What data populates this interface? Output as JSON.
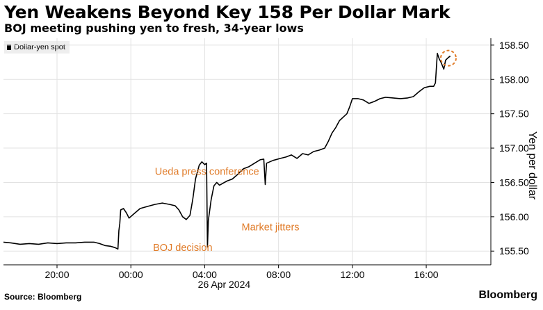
{
  "chart_data": {
    "type": "line",
    "title": "Yen Weakens Beyond Key 158 Per Dollar Mark",
    "subtitle": "BOJ meeting pushing yen to fresh, 34-year lows",
    "ylabel": "Yen per dollar",
    "xlabel": "",
    "date_label": "26 Apr 2024",
    "ylim": [
      155.3,
      158.6
    ],
    "xlim": [
      -6.9,
      19.5
    ],
    "y_ticks": [
      155.5,
      156.0,
      156.5,
      157.0,
      157.5,
      158.0,
      158.5
    ],
    "y_tick_labels": [
      "155.50",
      "156.00",
      "156.50",
      "157.00",
      "157.50",
      "158.00",
      "158.50"
    ],
    "x_ticks": [
      -4,
      0,
      4,
      8,
      12,
      16
    ],
    "x_tick_labels": [
      "20:00",
      "00:00",
      "04:00",
      "08:00",
      "12:00",
      "16:00"
    ],
    "legend": [
      "Dollar-yen spot"
    ],
    "series": [
      {
        "name": "Dollar-yen spot",
        "color": "#000000",
        "points": [
          [
            -6.9,
            155.63
          ],
          [
            -6.5,
            155.62
          ],
          [
            -6.0,
            155.6
          ],
          [
            -5.5,
            155.61
          ],
          [
            -5.0,
            155.6
          ],
          [
            -4.5,
            155.62
          ],
          [
            -4.0,
            155.61
          ],
          [
            -3.5,
            155.62
          ],
          [
            -3.0,
            155.62
          ],
          [
            -2.5,
            155.63
          ],
          [
            -2.0,
            155.63
          ],
          [
            -1.7,
            155.61
          ],
          [
            -1.4,
            155.58
          ],
          [
            -1.1,
            155.57
          ],
          [
            -0.85,
            155.55
          ],
          [
            -0.7,
            155.53
          ],
          [
            -0.65,
            155.8
          ],
          [
            -0.6,
            155.9
          ],
          [
            -0.55,
            156.1
          ],
          [
            -0.4,
            156.12
          ],
          [
            -0.25,
            156.06
          ],
          [
            -0.1,
            155.98
          ],
          [
            0.2,
            156.05
          ],
          [
            0.5,
            156.12
          ],
          [
            0.9,
            156.15
          ],
          [
            1.3,
            156.18
          ],
          [
            1.7,
            156.2
          ],
          [
            2.1,
            156.18
          ],
          [
            2.4,
            156.16
          ],
          [
            2.6,
            156.1
          ],
          [
            2.8,
            156.0
          ],
          [
            3.0,
            155.96
          ],
          [
            3.2,
            156.02
          ],
          [
            3.35,
            156.25
          ],
          [
            3.5,
            156.55
          ],
          [
            3.7,
            156.75
          ],
          [
            3.85,
            156.8
          ],
          [
            4.0,
            156.76
          ],
          [
            4.1,
            156.78
          ],
          [
            4.15,
            155.56
          ],
          [
            4.2,
            155.95
          ],
          [
            4.35,
            156.25
          ],
          [
            4.5,
            156.45
          ],
          [
            4.65,
            156.5
          ],
          [
            4.8,
            156.46
          ],
          [
            5.2,
            156.52
          ],
          [
            5.5,
            156.55
          ],
          [
            5.8,
            156.62
          ],
          [
            6.1,
            156.7
          ],
          [
            6.4,
            156.73
          ],
          [
            6.7,
            156.78
          ],
          [
            7.0,
            156.83
          ],
          [
            7.2,
            156.84
          ],
          [
            7.28,
            156.47
          ],
          [
            7.35,
            156.78
          ],
          [
            7.7,
            156.82
          ],
          [
            8.1,
            156.85
          ],
          [
            8.4,
            156.87
          ],
          [
            8.7,
            156.9
          ],
          [
            9.0,
            156.85
          ],
          [
            9.3,
            156.92
          ],
          [
            9.6,
            156.9
          ],
          [
            9.9,
            156.95
          ],
          [
            10.2,
            156.97
          ],
          [
            10.5,
            157.0
          ],
          [
            10.7,
            157.1
          ],
          [
            10.9,
            157.22
          ],
          [
            11.1,
            157.3
          ],
          [
            11.3,
            157.4
          ],
          [
            11.5,
            157.45
          ],
          [
            11.7,
            157.5
          ],
          [
            11.85,
            157.6
          ],
          [
            12.0,
            157.72
          ],
          [
            12.3,
            157.72
          ],
          [
            12.6,
            157.7
          ],
          [
            12.9,
            157.65
          ],
          [
            13.2,
            157.68
          ],
          [
            13.5,
            157.72
          ],
          [
            13.8,
            157.74
          ],
          [
            14.2,
            157.73
          ],
          [
            14.6,
            157.72
          ],
          [
            15.0,
            157.73
          ],
          [
            15.3,
            157.75
          ],
          [
            15.6,
            157.82
          ],
          [
            15.9,
            157.88
          ],
          [
            16.2,
            157.9
          ],
          [
            16.4,
            157.9
          ],
          [
            16.5,
            157.95
          ],
          [
            16.6,
            158.38
          ],
          [
            16.7,
            158.3
          ],
          [
            16.8,
            158.25
          ],
          [
            16.95,
            158.15
          ],
          [
            17.05,
            158.28
          ],
          [
            17.2,
            158.32
          ],
          [
            17.3,
            158.34
          ]
        ]
      }
    ],
    "annotations": [
      {
        "text": "Ueda press conference",
        "x": 1.3,
        "y": 156.61
      },
      {
        "text": "Market jitters",
        "x": 6.0,
        "y": 155.8
      },
      {
        "text": "BOJ decision",
        "x": 1.2,
        "y": 155.5
      }
    ],
    "highlight": {
      "x": 17.2,
      "y": 158.31,
      "color": "#e07b28"
    },
    "annotation_color": "#e07b28"
  },
  "footer": {
    "source": "Source: Bloomberg",
    "brand": "Bloomberg"
  }
}
